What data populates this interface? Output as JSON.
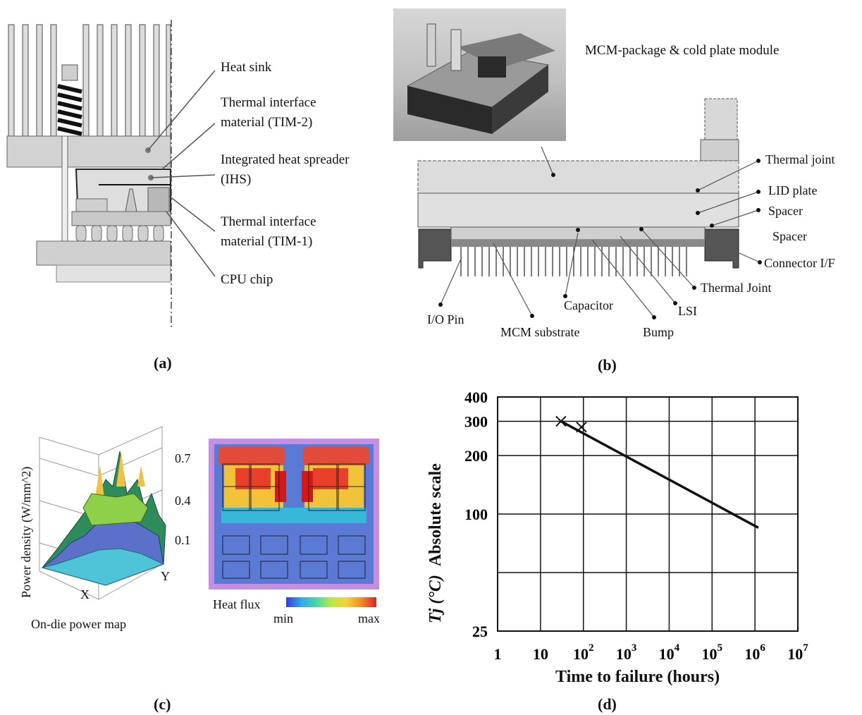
{
  "panel_a": {
    "caption": "(a)",
    "labels": {
      "heat_sink": "Heat sink",
      "tim2_line1": "Thermal interface",
      "tim2_line2": "material (TIM-2)",
      "ihs_line1": "Integrated heat spreader",
      "ihs_line2": "(IHS)",
      "tim1_line1": "Thermal interface",
      "tim1_line2": "material (TIM-1)",
      "cpu": "CPU chip"
    }
  },
  "panel_b": {
    "caption": "(b)",
    "photo_title": "MCM-package & cold plate module",
    "labels": {
      "thermal_joint": "Thermal joint",
      "lid_plate": "LID plate",
      "spacer1": "Spacer",
      "spacer2": "Spacer",
      "connector": "Connector I/F",
      "thermal_joint2": "Thermal Joint",
      "lsi": "LSI",
      "bump": "Bump",
      "capacitor": "Capacitor",
      "io_pin": "I/O Pin",
      "mcm_substrate": "MCM substrate"
    }
  },
  "panel_c": {
    "caption": "(c)",
    "z_axis_label": "Power density (W/mm^2)",
    "z_ticks": [
      "0.7",
      "0.4",
      "0.1"
    ],
    "x_label": "X",
    "y_label": "Y",
    "map_title": "On-die power map",
    "heat_flux_label": "Heat flux",
    "min_label": "min",
    "max_label": "max",
    "colors": {
      "min": "#3b3bd6",
      "max": "#e02222"
    }
  },
  "chart_data": {
    "type": "line",
    "title": "",
    "xlabel": "Time to failure (hours)",
    "ylabel": "Absolute scale",
    "ylabel_prefix": "Tj (°C)",
    "x_scale": "log",
    "y_scale": "log",
    "xlim": [
      1,
      10000000
    ],
    "ylim": [
      25,
      400
    ],
    "x_tick_labels": [
      "1",
      "10",
      "10^2",
      "10^3",
      "10^4",
      "10^5",
      "10^6",
      "10^7"
    ],
    "y_tick_labels": [
      "400",
      "300",
      "200",
      "100",
      "25"
    ],
    "grid": true,
    "series": [
      {
        "x": [
          30,
          1200000
        ],
        "y": [
          300,
          85
        ]
      }
    ],
    "markers": [
      {
        "x": 30,
        "y": 300,
        "symbol": "x"
      },
      {
        "x": 90,
        "y": 280,
        "symbol": "x"
      }
    ],
    "caption": "(d)"
  }
}
